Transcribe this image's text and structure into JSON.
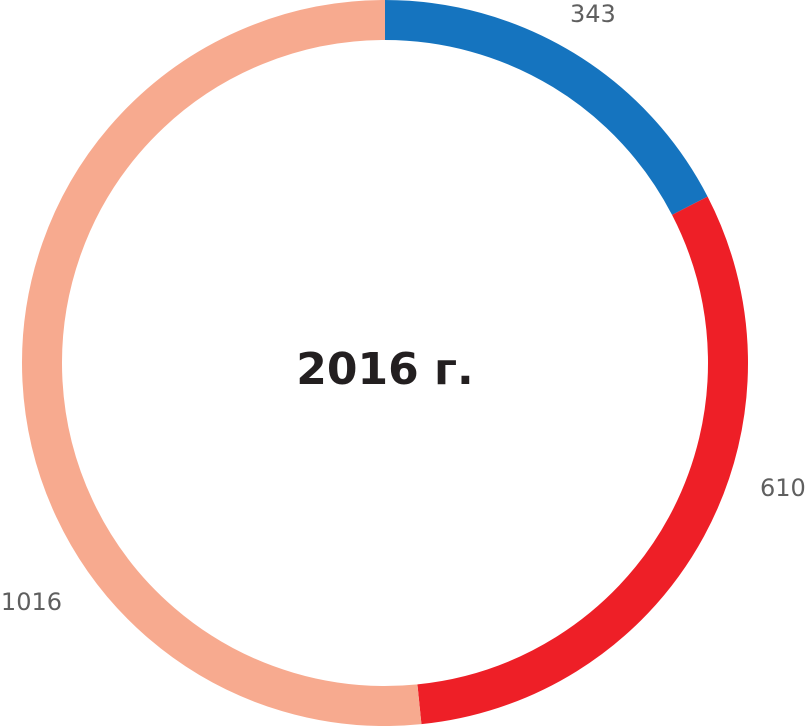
{
  "chart_data": {
    "type": "pie",
    "title": "2016 г.",
    "categories": [
      "",
      "",
      ""
    ],
    "values": [
      343,
      610,
      1016
    ],
    "value_labels": [
      "343",
      "610",
      "1016"
    ],
    "colors": [
      "#1574bf",
      "#ee1f27",
      "#f7aa8f"
    ],
    "donut": true,
    "legend": "none",
    "grid": false
  }
}
